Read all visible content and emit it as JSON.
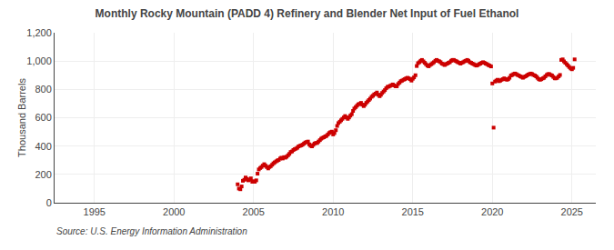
{
  "chart_data": {
    "type": "scatter",
    "title": "Monthly Rocky Mountain (PADD 4) Refinery and Blender Net Input of Fuel Ethanol",
    "ylabel": "Thousand Barrels",
    "annotations": [
      "Source: U.S. Energy Information Administration"
    ],
    "color": "#cc0000",
    "marker": "square",
    "grid": true,
    "xlim": [
      1992.5,
      2026.5
    ],
    "xticks": [
      1995,
      2000,
      2005,
      2010,
      2015,
      2020,
      2025
    ],
    "ylim": [
      0,
      1200
    ],
    "yticks": [
      0,
      200,
      400,
      600,
      800,
      {
        "value": 1000,
        "label": "1,000"
      },
      {
        "value": 1200,
        "label": "1,200"
      }
    ],
    "x": [
      2004.0,
      2004.08,
      2004.17,
      2004.25,
      2004.33,
      2004.42,
      2004.5,
      2004.58,
      2004.67,
      2004.75,
      2004.83,
      2004.92,
      2005.0,
      2005.08,
      2005.17,
      2005.25,
      2005.33,
      2005.42,
      2005.5,
      2005.58,
      2005.67,
      2005.75,
      2005.83,
      2005.92,
      2006.0,
      2006.08,
      2006.17,
      2006.25,
      2006.33,
      2006.42,
      2006.5,
      2006.58,
      2006.67,
      2006.75,
      2006.83,
      2006.92,
      2007.0,
      2007.08,
      2007.17,
      2007.25,
      2007.33,
      2007.42,
      2007.5,
      2007.58,
      2007.67,
      2007.75,
      2007.83,
      2007.92,
      2008.0,
      2008.08,
      2008.17,
      2008.25,
      2008.33,
      2008.42,
      2008.5,
      2008.58,
      2008.67,
      2008.75,
      2008.83,
      2008.92,
      2009.0,
      2009.08,
      2009.17,
      2009.25,
      2009.33,
      2009.42,
      2009.5,
      2009.58,
      2009.67,
      2009.75,
      2009.83,
      2009.92,
      2010.0,
      2010.08,
      2010.17,
      2010.25,
      2010.33,
      2010.42,
      2010.5,
      2010.58,
      2010.67,
      2010.75,
      2010.83,
      2010.92,
      2011.0,
      2011.08,
      2011.17,
      2011.25,
      2011.33,
      2011.42,
      2011.5,
      2011.58,
      2011.67,
      2011.75,
      2011.83,
      2011.92,
      2012.0,
      2012.08,
      2012.17,
      2012.25,
      2012.33,
      2012.42,
      2012.5,
      2012.58,
      2012.67,
      2012.75,
      2012.83,
      2012.92,
      2013.0,
      2013.08,
      2013.17,
      2013.25,
      2013.33,
      2013.42,
      2013.5,
      2013.58,
      2013.67,
      2013.75,
      2013.83,
      2013.92,
      2014.0,
      2014.08,
      2014.17,
      2014.25,
      2014.33,
      2014.42,
      2014.5,
      2014.58,
      2014.67,
      2014.75,
      2014.83,
      2014.92,
      2015.0,
      2015.08,
      2015.17,
      2015.25,
      2015.33,
      2015.42,
      2015.5,
      2015.58,
      2015.67,
      2015.75,
      2015.83,
      2015.92,
      2016.0,
      2016.08,
      2016.17,
      2016.25,
      2016.33,
      2016.42,
      2016.5,
      2016.58,
      2016.67,
      2016.75,
      2016.83,
      2016.92,
      2017.0,
      2017.08,
      2017.17,
      2017.25,
      2017.33,
      2017.42,
      2017.5,
      2017.58,
      2017.67,
      2017.75,
      2017.83,
      2017.92,
      2018.0,
      2018.08,
      2018.17,
      2018.25,
      2018.33,
      2018.42,
      2018.5,
      2018.58,
      2018.67,
      2018.75,
      2018.83,
      2018.92,
      2019.0,
      2019.08,
      2019.17,
      2019.25,
      2019.33,
      2019.42,
      2019.5,
      2019.58,
      2019.67,
      2019.75,
      2019.83,
      2019.92,
      2020.0,
      2020.08,
      2020.17,
      2020.25,
      2020.33,
      2020.42,
      2020.5,
      2020.58,
      2020.67,
      2020.75,
      2020.83,
      2020.92,
      2021.0,
      2021.08,
      2021.17,
      2021.25,
      2021.33,
      2021.42,
      2021.5,
      2021.58,
      2021.67,
      2021.75,
      2021.83,
      2021.92,
      2022.0,
      2022.08,
      2022.17,
      2022.25,
      2022.33,
      2022.42,
      2022.5,
      2022.58,
      2022.67,
      2022.75,
      2022.83,
      2022.92,
      2023.0,
      2023.08,
      2023.17,
      2023.25,
      2023.33,
      2023.42,
      2023.5,
      2023.58,
      2023.67,
      2023.75,
      2023.83,
      2023.92,
      2024.0,
      2024.08,
      2024.17,
      2024.25,
      2024.33,
      2024.42,
      2024.5,
      2024.58,
      2024.67,
      2024.75,
      2024.83,
      2024.92,
      2025.0,
      2025.08,
      2025.17
    ],
    "values": [
      130,
      100,
      95,
      115,
      155,
      162,
      178,
      168,
      158,
      162,
      172,
      148,
      152,
      148,
      158,
      205,
      235,
      245,
      252,
      262,
      272,
      262,
      252,
      242,
      252,
      258,
      268,
      278,
      285,
      292,
      298,
      302,
      312,
      318,
      312,
      322,
      318,
      325,
      335,
      345,
      358,
      362,
      372,
      378,
      382,
      388,
      398,
      402,
      405,
      410,
      418,
      425,
      428,
      432,
      412,
      402,
      398,
      408,
      418,
      422,
      422,
      432,
      442,
      452,
      458,
      462,
      468,
      472,
      482,
      492,
      498,
      502,
      482,
      492,
      512,
      542,
      562,
      572,
      582,
      592,
      602,
      612,
      602,
      592,
      602,
      615,
      625,
      648,
      665,
      675,
      685,
      695,
      698,
      705,
      692,
      682,
      692,
      705,
      715,
      725,
      735,
      748,
      755,
      765,
      770,
      778,
      762,
      752,
      762,
      775,
      785,
      795,
      808,
      818,
      820,
      825,
      830,
      835,
      828,
      822,
      822,
      838,
      848,
      858,
      862,
      868,
      872,
      878,
      882,
      878,
      872,
      862,
      875,
      885,
      900,
      965,
      985,
      992,
      1002,
      1008,
      998,
      988,
      978,
      968,
      963,
      972,
      978,
      985,
      992,
      1002,
      1008,
      1002,
      998,
      992,
      982,
      978,
      972,
      978,
      982,
      988,
      992,
      1002,
      1008,
      1008,
      1002,
      998,
      992,
      988,
      982,
      988,
      992,
      998,
      1002,
      1008,
      1002,
      992,
      988,
      982,
      978,
      972,
      968,
      972,
      978,
      982,
      988,
      992,
      988,
      982,
      978,
      972,
      968,
      962,
      842,
      530,
      855,
      862,
      868,
      858,
      862,
      868,
      872,
      878,
      872,
      868,
      872,
      882,
      898,
      902,
      908,
      912,
      908,
      902,
      898,
      892,
      888,
      882,
      888,
      892,
      898,
      905,
      908,
      912,
      908,
      902,
      898,
      892,
      882,
      872,
      868,
      872,
      878,
      882,
      892,
      902,
      908,
      908,
      902,
      898,
      888,
      878,
      878,
      882,
      892,
      902,
      1008,
      1012,
      998,
      988,
      978,
      968,
      958,
      948,
      942,
      952,
      1012
    ]
  }
}
